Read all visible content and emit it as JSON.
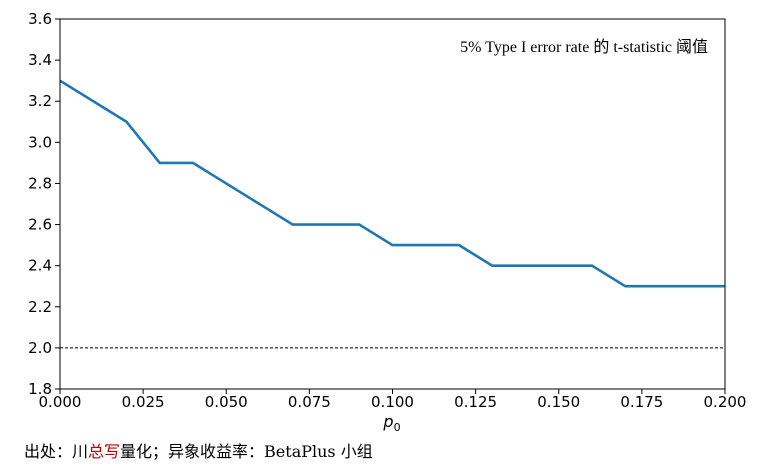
{
  "chart_data": {
    "type": "line",
    "annotation": "5% Type I error rate 的 t-statistic 阈值",
    "xlabel": "p",
    "xlabel_subscript": "0",
    "ylabel": "",
    "xlim": [
      0.0,
      0.2
    ],
    "ylim": [
      1.8,
      3.6
    ],
    "x_ticks": [
      0.0,
      0.025,
      0.05,
      0.075,
      0.1,
      0.125,
      0.15,
      0.175,
      0.2
    ],
    "x_tick_labels": [
      "0.000",
      "0.025",
      "0.050",
      "0.075",
      "0.100",
      "0.125",
      "0.150",
      "0.175",
      "0.200"
    ],
    "y_ticks": [
      1.8,
      2.0,
      2.2,
      2.4,
      2.6,
      2.8,
      3.0,
      3.2,
      3.4,
      3.6
    ],
    "y_tick_labels": [
      "1.8",
      "2.0",
      "2.2",
      "2.4",
      "2.6",
      "2.8",
      "3.0",
      "3.2",
      "3.4",
      "3.6"
    ],
    "grid": false,
    "series": [
      {
        "color": "#1f77b4",
        "x": [
          0.0,
          0.02,
          0.03,
          0.04,
          0.07,
          0.09,
          0.1,
          0.12,
          0.13,
          0.16,
          0.17,
          0.2
        ],
        "y": [
          3.3,
          3.1,
          2.9,
          2.9,
          2.6,
          2.6,
          2.5,
          2.5,
          2.4,
          2.4,
          2.3,
          2.3
        ]
      }
    ],
    "reference_line": {
      "y": 2.0,
      "style": "dashed",
      "color": "#000000"
    }
  },
  "footer": {
    "prefix": "出处：川",
    "highlight": "总写",
    "suffix": "量化；异象收益率：BetaPlus 小组"
  }
}
